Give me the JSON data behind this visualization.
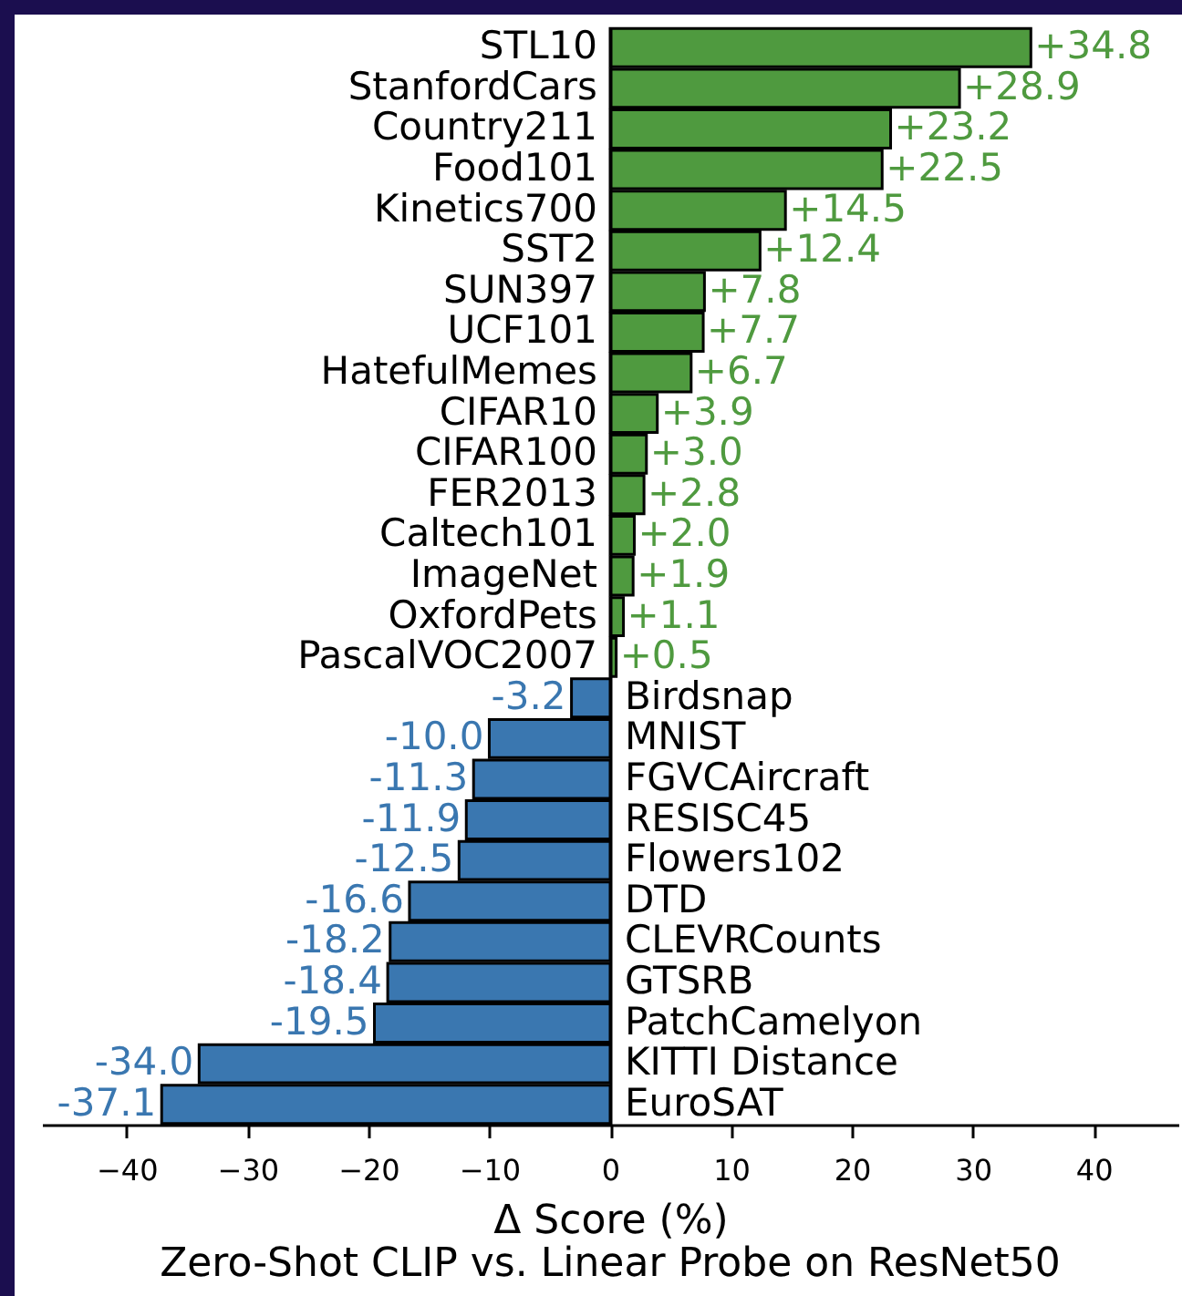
{
  "chart_data": {
    "type": "bar",
    "orientation": "horizontal",
    "title": "Zero-Shot CLIP vs. Linear Probe on ResNet50",
    "xlabel": "Δ Score (%)",
    "categories": [
      "STL10",
      "StanfordCars",
      "Country211",
      "Food101",
      "Kinetics700",
      "SST2",
      "SUN397",
      "UCF101",
      "HatefulMemes",
      "CIFAR10",
      "CIFAR100",
      "FER2013",
      "Caltech101",
      "ImageNet",
      "OxfordPets",
      "PascalVOC2007",
      "Birdsnap",
      "MNIST",
      "FGVCAircraft",
      "RESISC45",
      "Flowers102",
      "DTD",
      "CLEVRCounts",
      "GTSRB",
      "PatchCamelyon",
      "KITTI Distance",
      "EuroSAT"
    ],
    "values": [
      34.8,
      28.9,
      23.2,
      22.5,
      14.5,
      12.4,
      7.8,
      7.7,
      6.7,
      3.9,
      3.0,
      2.8,
      2.0,
      1.9,
      1.1,
      0.5,
      -3.2,
      -10.0,
      -11.3,
      -11.9,
      -12.5,
      -16.6,
      -18.2,
      -18.4,
      -19.5,
      -34.0,
      -37.1
    ],
    "value_labels": [
      "+34.8",
      "+28.9",
      "+23.2",
      "+22.5",
      "+14.5",
      "+12.4",
      "+7.8",
      "+7.7",
      "+6.7",
      "+3.9",
      "+3.0",
      "+2.8",
      "+2.0",
      "+1.9",
      "+1.1",
      "+0.5",
      "-3.2",
      "-10.0",
      "-11.3",
      "-11.9",
      "-12.5",
      "-16.6",
      "-18.2",
      "-18.4",
      "-19.5",
      "-34.0",
      "-37.1"
    ],
    "colors": [
      "#4f9a3f",
      "#4f9a3f",
      "#4f9a3f",
      "#4f9a3f",
      "#4f9a3f",
      "#4f9a3f",
      "#4f9a3f",
      "#4f9a3f",
      "#4f9a3f",
      "#4f9a3f",
      "#4f9a3f",
      "#4f9a3f",
      "#4f9a3f",
      "#4f9a3f",
      "#4f9a3f",
      "#4f9a3f",
      "#3a77b0",
      "#3a77b0",
      "#3a77b0",
      "#3a77b0",
      "#3a77b0",
      "#3a77b0",
      "#3a77b0",
      "#3a77b0",
      "#3a77b0",
      "#3a77b0",
      "#3a77b0"
    ],
    "xlim": [
      -47,
      47
    ],
    "xticks": [
      {
        "value": -40,
        "label": "−40"
      },
      {
        "value": -30,
        "label": "−30"
      },
      {
        "value": -20,
        "label": "−20"
      },
      {
        "value": -10,
        "label": "−10"
      },
      0,
      10,
      20,
      30,
      40
    ]
  }
}
